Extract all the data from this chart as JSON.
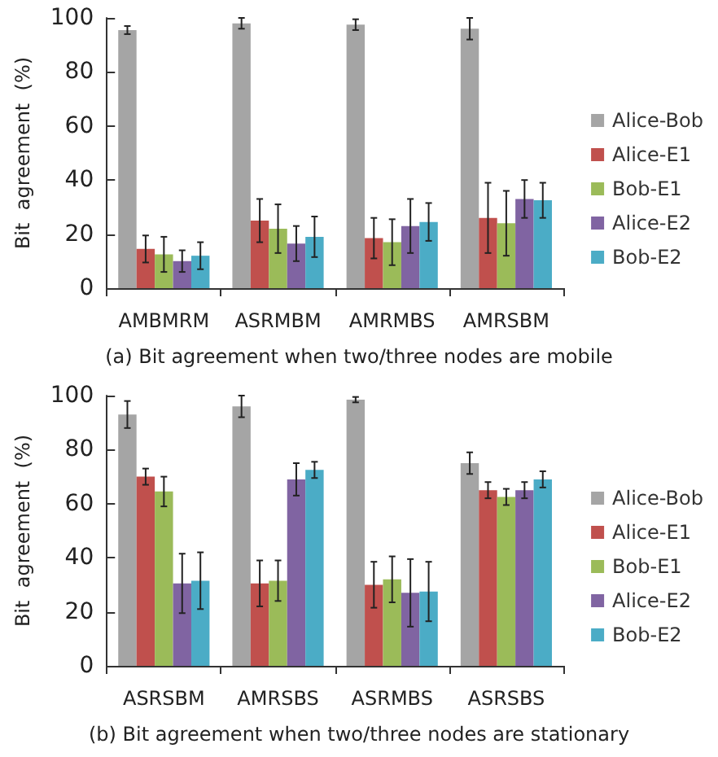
{
  "chart_data": [
    {
      "type": "bar",
      "title": "(a) Bit agreement when two/three nodes are mobile",
      "ylabel": "Bit  agreement  (%)",
      "categories": [
        "AMBMRM",
        "ASRMBM",
        "AMRMBS",
        "AMRSBM"
      ],
      "ylim": [
        0,
        100
      ],
      "yticks": [
        0,
        20,
        40,
        60,
        80,
        100
      ],
      "grid": false,
      "legend": "right",
      "series": [
        {
          "name": "Alice-Bob",
          "color": "#a5a5a5",
          "values": [
            95.5,
            98,
            97.5,
            96
          ],
          "errors": [
            1.5,
            2,
            2,
            4
          ]
        },
        {
          "name": "Alice-E1",
          "color": "#c0504d",
          "values": [
            14.5,
            25,
            18.5,
            26
          ],
          "errors": [
            5,
            8,
            7.5,
            13
          ]
        },
        {
          "name": "Bob-E1",
          "color": "#9bbb59",
          "values": [
            12.5,
            22,
            17,
            24
          ],
          "errors": [
            6.5,
            9,
            8.5,
            12
          ]
        },
        {
          "name": "Alice-E2",
          "color": "#8064a2",
          "values": [
            10,
            16.5,
            23,
            33
          ],
          "errors": [
            4,
            6.5,
            10,
            7
          ]
        },
        {
          "name": "Bob-E2",
          "color": "#4bacc6",
          "values": [
            12,
            19,
            24.5,
            32.5
          ],
          "errors": [
            5,
            7.5,
            7,
            6.5
          ]
        }
      ]
    },
    {
      "type": "bar",
      "title": "(b) Bit agreement when two/three nodes are stationary",
      "ylabel": "Bit  agreement  (%)",
      "categories": [
        "ASRSBM",
        "AMRSBS",
        "ASRMBS",
        "ASRSBS"
      ],
      "ylim": [
        0,
        100
      ],
      "yticks": [
        0,
        20,
        40,
        60,
        80,
        100
      ],
      "grid": false,
      "legend": "right",
      "series": [
        {
          "name": "Alice-Bob",
          "color": "#a5a5a5",
          "values": [
            93,
            96,
            98.5,
            75
          ],
          "errors": [
            5,
            4,
            1,
            4
          ]
        },
        {
          "name": "Alice-E1",
          "color": "#c0504d",
          "values": [
            70,
            30.5,
            30,
            65
          ],
          "errors": [
            3,
            8.5,
            8.5,
            3
          ]
        },
        {
          "name": "Bob-E1",
          "color": "#9bbb59",
          "values": [
            64.5,
            31.5,
            32,
            62.5
          ],
          "errors": [
            5.5,
            7.5,
            8.5,
            3
          ]
        },
        {
          "name": "Alice-E2",
          "color": "#8064a2",
          "values": [
            30.5,
            69,
            27,
            65
          ],
          "errors": [
            11,
            6,
            12.5,
            3
          ]
        },
        {
          "name": "Bob-E2",
          "color": "#4bacc6",
          "values": [
            31.5,
            72.5,
            27.5,
            69
          ],
          "errors": [
            10.5,
            3,
            11,
            3
          ]
        }
      ]
    }
  ]
}
